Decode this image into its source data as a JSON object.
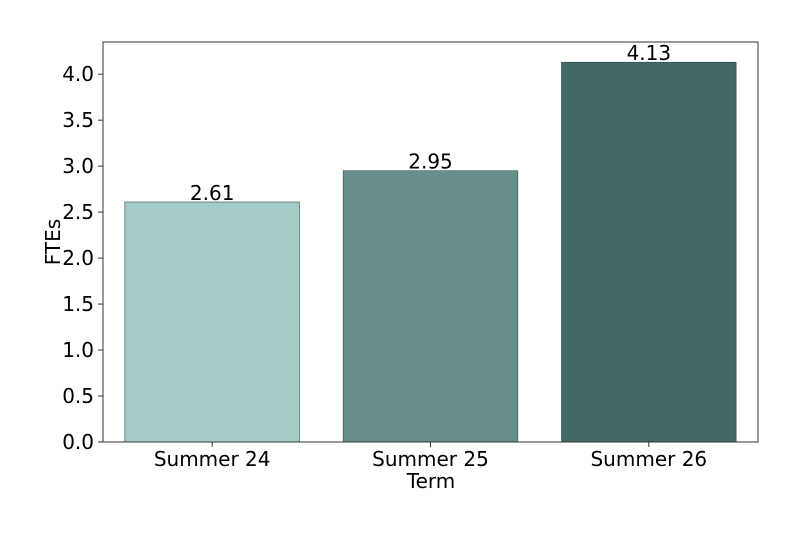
{
  "chart_data": {
    "type": "bar",
    "title": "",
    "xlabel": "Term",
    "ylabel": "FTEs",
    "categories": [
      "Summer 24",
      "Summer 25",
      "Summer 26"
    ],
    "values": [
      2.61,
      2.95,
      4.13
    ],
    "value_labels": [
      "2.61",
      "2.95",
      "4.13"
    ],
    "bar_colors": [
      "#a5cbc8",
      "#668f8b",
      "#416a66"
    ],
    "ylim": [
      0,
      4.35
    ],
    "yticks": [
      0.0,
      0.5,
      1.0,
      1.5,
      2.0,
      2.5,
      3.0,
      3.5,
      4.0
    ],
    "ytick_labels": [
      "0.0",
      "0.5",
      "1.0",
      "1.5",
      "2.0",
      "2.5",
      "3.0",
      "3.5",
      "4.0"
    ],
    "grid": false,
    "legend": "none"
  }
}
